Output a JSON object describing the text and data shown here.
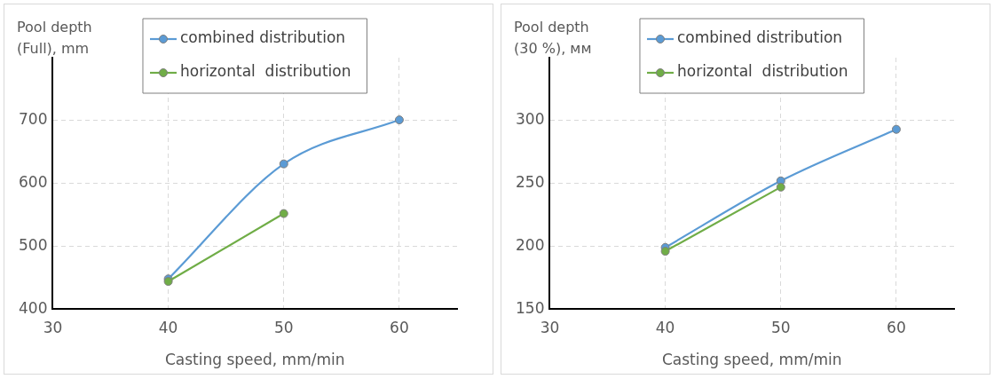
{
  "chart_data": [
    {
      "type": "line",
      "xlabel": "Casting speed, mm/min",
      "ylabel": "Pool depth (Full), mm",
      "x": [
        40,
        50,
        60
      ],
      "series": [
        {
          "name": "combined distribution",
          "color": "#5b9bd5",
          "values": [
            448,
            631,
            701
          ]
        },
        {
          "name": "horizontal  distribution",
          "color": "#70ad47",
          "values": [
            444,
            552,
            null
          ]
        }
      ],
      "xlim": [
        30,
        65
      ],
      "xticks": [
        30,
        40,
        50,
        60
      ],
      "ylim": [
        400,
        800
      ],
      "yticks": [
        400,
        500,
        600,
        700
      ],
      "grid": true,
      "legend": "top",
      "marker": "circle"
    },
    {
      "type": "line",
      "xlabel": "Casting speed, mm/min",
      "ylabel": "Pool depth (30 %), мм",
      "x": [
        40,
        50,
        60
      ],
      "series": [
        {
          "name": "combined distribution",
          "color": "#5b9bd5",
          "values": [
            199,
            252,
            293
          ]
        },
        {
          "name": "horizontal  distribution",
          "color": "#70ad47",
          "values": [
            196,
            247,
            null
          ]
        }
      ],
      "xlim": [
        30,
        65
      ],
      "xticks": [
        30,
        40,
        50,
        60
      ],
      "ylim": [
        150,
        350
      ],
      "yticks": [
        150,
        200,
        250,
        300
      ],
      "grid": true,
      "legend": "top",
      "marker": "circle"
    }
  ]
}
